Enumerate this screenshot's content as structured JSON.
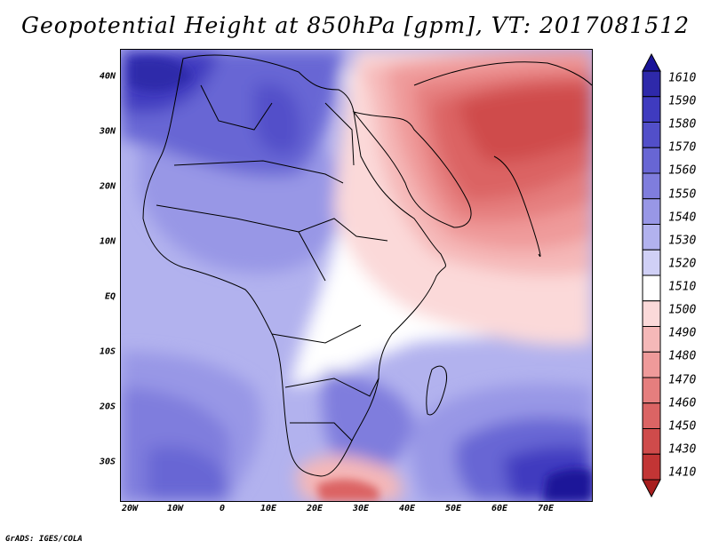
{
  "title": "Geopotential Height at 850hPa [gpm], VT: 2017081512",
  "footer": "GrADS: IGES/COLA",
  "map": {
    "lat_labels": [
      "40N",
      "30N",
      "20N",
      "10N",
      "EQ",
      "10S",
      "20S",
      "30S"
    ],
    "lon_labels": [
      "20W",
      "10W",
      "0",
      "10E",
      "20E",
      "30E",
      "40E",
      "50E",
      "60E",
      "70E"
    ]
  },
  "colorbar": {
    "labels": [
      "1610",
      "1590",
      "1580",
      "1570",
      "1560",
      "1550",
      "1540",
      "1530",
      "1520",
      "1510",
      "1500",
      "1490",
      "1480",
      "1470",
      "1460",
      "1450",
      "1430",
      "1410"
    ],
    "colors": [
      "#1a1499",
      "#2e29aa",
      "#3f3bbf",
      "#524fc9",
      "#6866d4",
      "#7f7ddd",
      "#9897e6",
      "#b2b2ee",
      "#d0d0f6",
      "#ffffff",
      "#fbd9d9",
      "#f5b8b8",
      "#ef9a9a",
      "#e57e7e",
      "#db6464",
      "#cf4b4b",
      "#c23535",
      "#a81e1e"
    ]
  },
  "chart_data": {
    "type": "heatmap",
    "title": "Geopotential Height at 850hPa [gpm], VT: 2017081512",
    "variable": "Geopotential Height at 850hPa",
    "units": "gpm",
    "valid_time": "2017081512",
    "lon_range": [
      -25,
      80
    ],
    "lat_range": [
      -37,
      45
    ],
    "x_tick_labels": [
      "20W",
      "10W",
      "0",
      "10E",
      "20E",
      "30E",
      "40E",
      "50E",
      "60E",
      "70E"
    ],
    "y_tick_labels": [
      "40N",
      "30N",
      "20N",
      "10N",
      "EQ",
      "10S",
      "20S",
      "30S"
    ],
    "levels": [
      1410,
      1430,
      1450,
      1460,
      1470,
      1480,
      1490,
      1500,
      1510,
      1520,
      1530,
      1540,
      1550,
      1560,
      1570,
      1580,
      1590,
      1610
    ]
  }
}
